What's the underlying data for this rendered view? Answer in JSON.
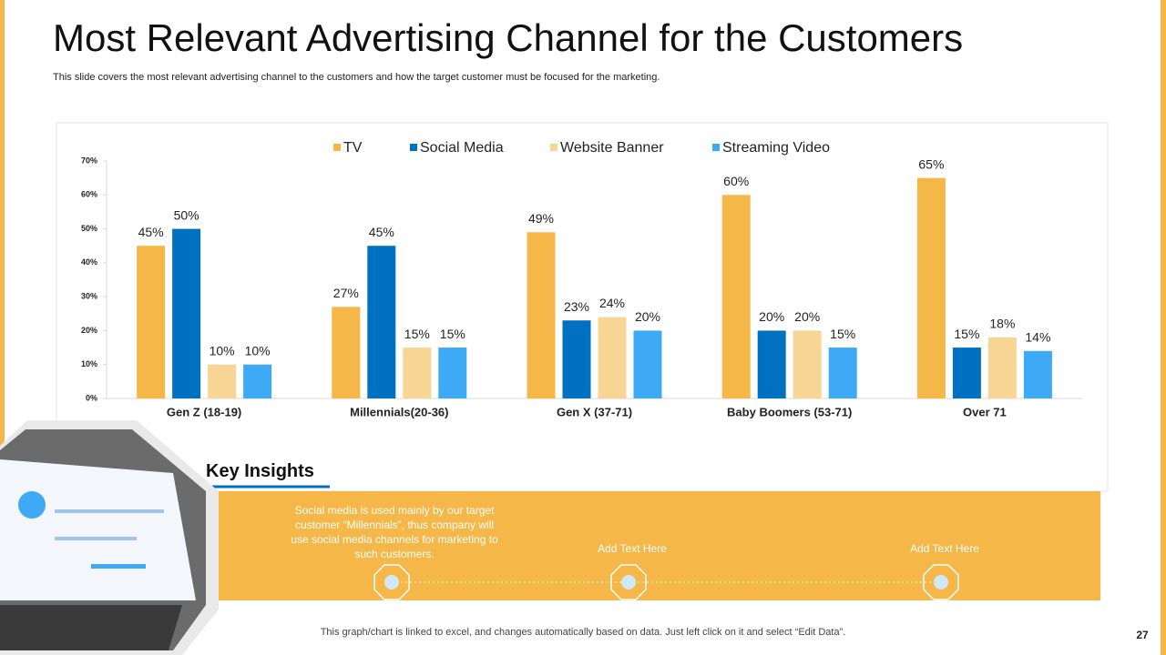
{
  "title": "Most Relevant Advertising Channel for the Customers",
  "subtitle": "This slide covers the most relevant advertising channel to the customers and how the target customer must be focused for the marketing.",
  "chart_data": {
    "type": "bar",
    "categories": [
      "Gen Z (18-19)",
      "Millennials(20-36)",
      "Gen X (37-71)",
      "Baby Boomers (53-71)",
      "Over 71"
    ],
    "series": [
      {
        "name": "TV",
        "color": "#F4B748",
        "values": [
          45,
          27,
          49,
          60,
          65
        ],
        "value_labels": [
          "45%",
          "27%",
          "49%",
          "60%",
          "65%"
        ]
      },
      {
        "name": "Social Media",
        "color": "#0070C0",
        "values": [
          50,
          45,
          23,
          20,
          15
        ],
        "value_labels": [
          "50%",
          "45%",
          "23%",
          "20%",
          "15%"
        ]
      },
      {
        "name": "Website Banner",
        "color": "#F8D595",
        "values": [
          10,
          15,
          24,
          20,
          18
        ],
        "value_labels": [
          "10%",
          "15%",
          "24%",
          "20%",
          "18%"
        ]
      },
      {
        "name": "Streaming Video",
        "color": "#3EA9F5",
        "values": [
          10,
          15,
          20,
          15,
          14
        ],
        "value_labels": [
          "10%",
          "15%",
          "20%",
          "15%",
          "14%"
        ]
      }
    ],
    "ylim": [
      0,
      70
    ],
    "yticks": [
      {
        "value": 0,
        "label": "0%"
      },
      {
        "value": 10,
        "label": "10%"
      },
      {
        "value": 20,
        "label": "20%"
      },
      {
        "value": 30,
        "label": "30%"
      },
      {
        "value": 40,
        "label": "40%"
      },
      {
        "value": 50,
        "label": "50%"
      },
      {
        "value": 60,
        "label": "60%"
      },
      {
        "value": 70,
        "label": "70%"
      }
    ],
    "legend": "top"
  },
  "insights": {
    "heading": "Key Insights",
    "items": [
      "Social media is used mainly by our target customer “Millennials”, thus company will use social media channels for marketing to such customers.",
      "Add Text Here",
      "Add Text Here"
    ]
  },
  "footer": "This graph/chart is linked to excel, and changes automatically based on data. Just left click on it and select “Edit Data”.",
  "page_number": 27
}
